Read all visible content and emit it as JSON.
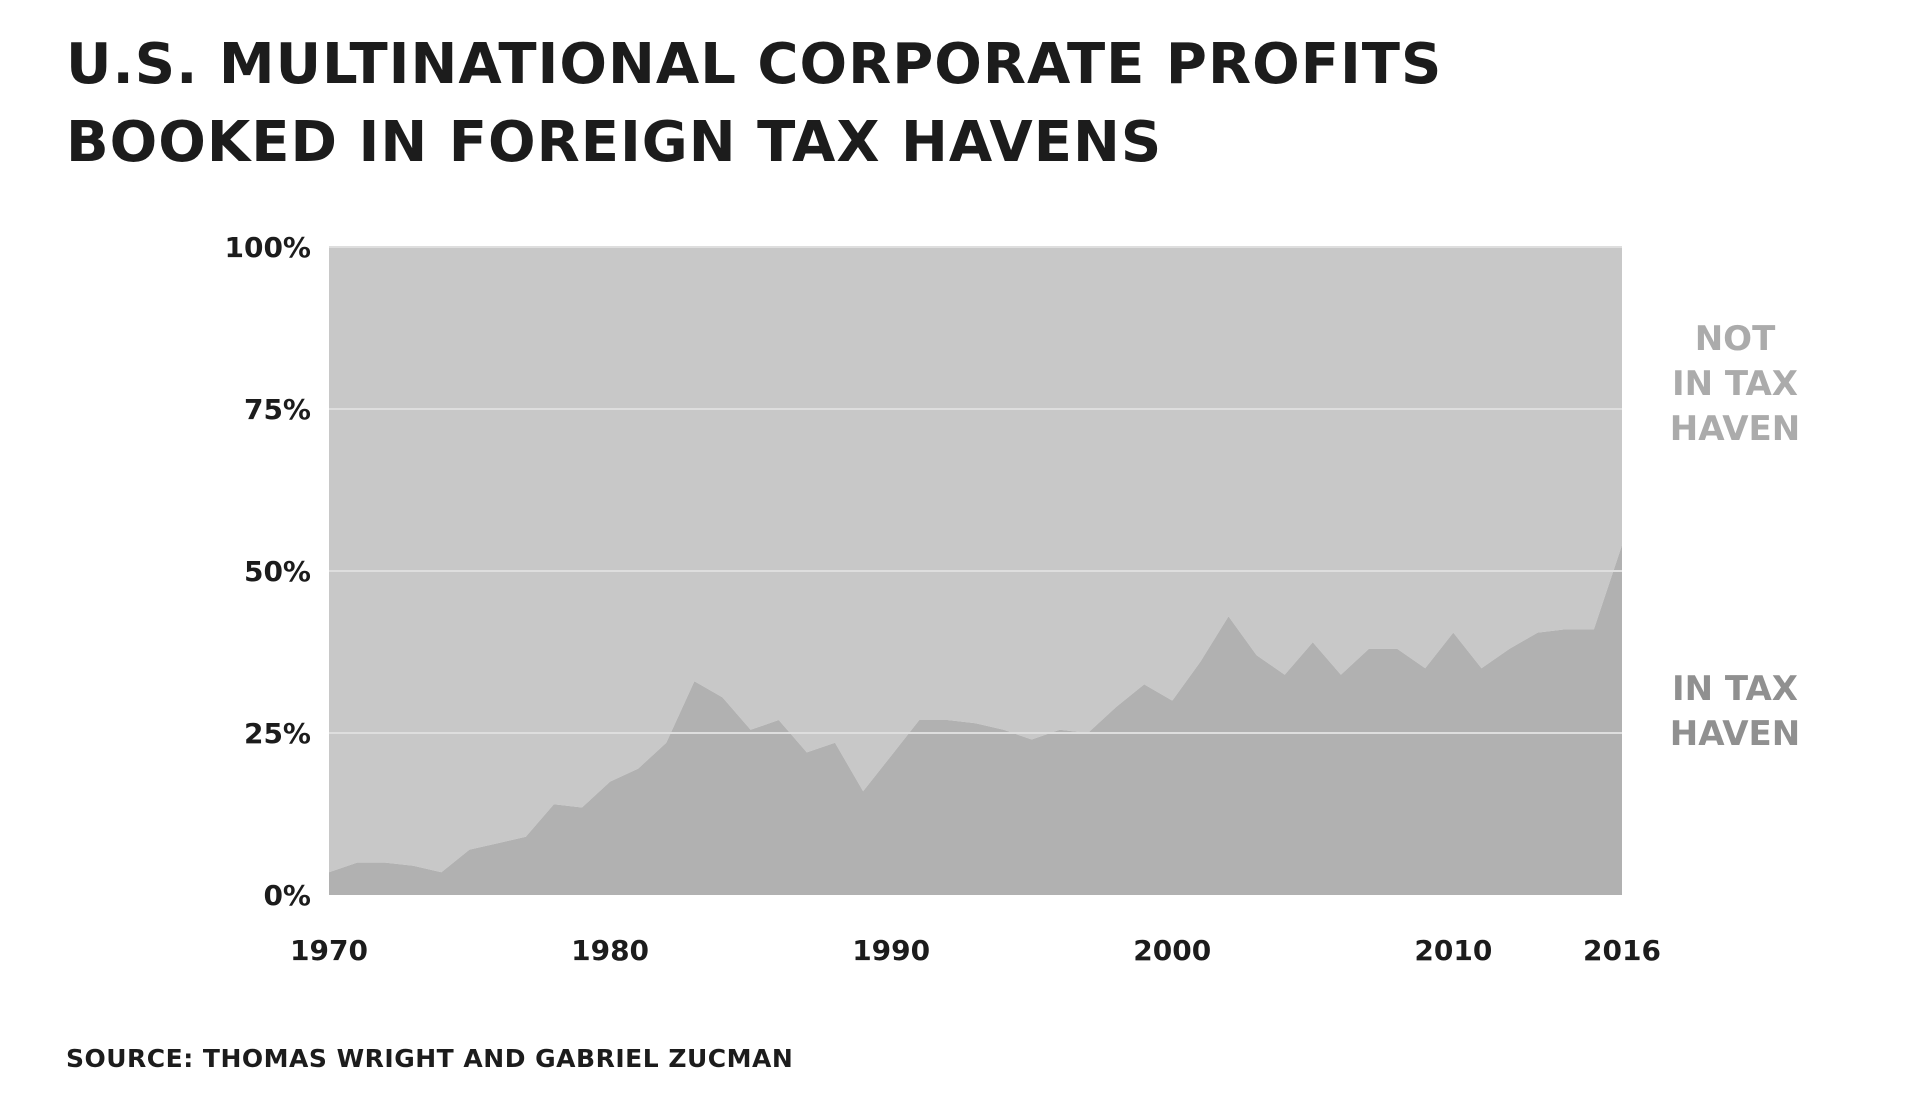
{
  "title": {
    "line1": "U.S. MULTINATIONAL CORPORATE PROFITS",
    "line2": "BOOKED IN FOREIGN TAX HAVENS"
  },
  "source": "SOURCE: THOMAS WRIGHT AND GABRIEL ZUCMAN",
  "colors": {
    "not_in_tax_haven": "#c8c8c8",
    "in_tax_haven": "#b1b1b1",
    "grid": "#dedede",
    "label_not_in_tax_haven": "#ababab",
    "label_in_tax_haven": "#909090",
    "text": "#1c1c1c"
  },
  "chart_data": {
    "type": "area",
    "stacked": true,
    "grid": true,
    "legend_placement": "right",
    "ylim": [
      0,
      100
    ],
    "xlim": [
      1970,
      2016
    ],
    "y_ticks": [
      {
        "value": 0,
        "label": "0%"
      },
      {
        "value": 25,
        "label": "25%"
      },
      {
        "value": 50,
        "label": "50%"
      },
      {
        "value": 75,
        "label": "75%"
      },
      {
        "value": 100,
        "label": "100%"
      }
    ],
    "x_ticks": [
      {
        "value": 1970,
        "label": "1970"
      },
      {
        "value": 1980,
        "label": "1980"
      },
      {
        "value": 1990,
        "label": "1990"
      },
      {
        "value": 2000,
        "label": "2000"
      },
      {
        "value": 2010,
        "label": "2010"
      },
      {
        "value": 2016,
        "label": "2016"
      }
    ],
    "x": [
      1970,
      1971,
      1972,
      1973,
      1974,
      1975,
      1976,
      1977,
      1978,
      1979,
      1980,
      1981,
      1982,
      1983,
      1984,
      1985,
      1986,
      1987,
      1988,
      1989,
      1990,
      1991,
      1992,
      1993,
      1994,
      1995,
      1996,
      1997,
      1998,
      1999,
      2000,
      2001,
      2002,
      2003,
      2004,
      2005,
      2006,
      2007,
      2008,
      2009,
      2010,
      2011,
      2012,
      2013,
      2014,
      2015,
      2016
    ],
    "series": [
      {
        "name": "NOT IN TAX HAVEN",
        "label_lines": [
          "NOT",
          "IN TAX",
          "HAVEN"
        ],
        "values": [
          96.5,
          95,
          95,
          95.5,
          96.5,
          93,
          92,
          91,
          86,
          86.5,
          82.5,
          80.5,
          76.5,
          67,
          69.5,
          74.5,
          73,
          78,
          76.5,
          84,
          78.5,
          73,
          73,
          73.5,
          74.5,
          76,
          74.5,
          75,
          71,
          67.5,
          70,
          64,
          57,
          63,
          66,
          61,
          66,
          62,
          62,
          65,
          59.5,
          65,
          62,
          59.5,
          59,
          59,
          46
        ]
      },
      {
        "name": "IN TAX HAVEN",
        "label_lines": [
          "IN TAX",
          "HAVEN"
        ],
        "values": [
          3.5,
          5,
          5,
          4.5,
          3.5,
          7,
          8,
          9,
          14,
          13.5,
          17.5,
          19.5,
          23.5,
          33,
          30.5,
          25.5,
          27,
          22,
          23.5,
          16,
          21.5,
          27,
          27,
          26.5,
          25.5,
          24,
          25.5,
          25,
          29,
          32.5,
          30,
          36,
          43,
          37,
          34,
          39,
          34,
          38,
          38,
          35,
          40.5,
          35,
          38,
          40.5,
          41,
          41,
          54
        ]
      }
    ]
  }
}
